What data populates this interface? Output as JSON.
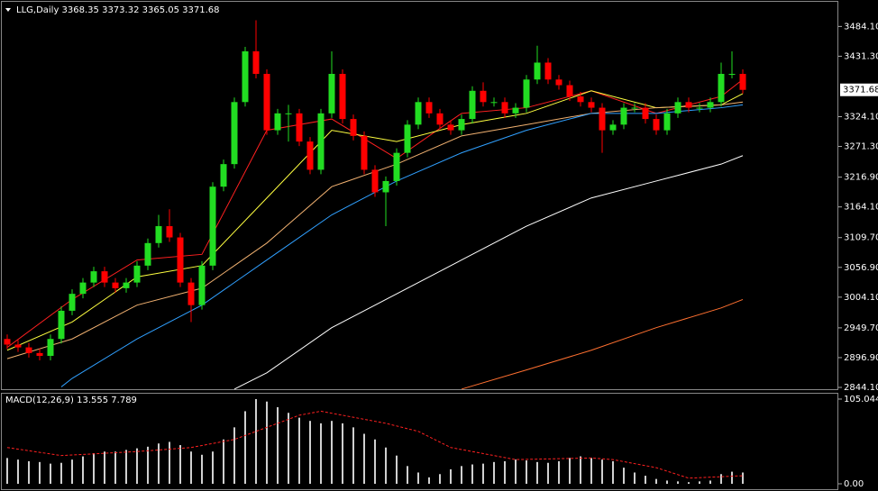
{
  "chart_data": {
    "type": "candlestick",
    "title": "LLG,Daily  3368.35 3373.32 3365.05 3371.68",
    "price_label": "3371.68",
    "price_label_value": 3371.68,
    "up_color": "#22dd22",
    "down_color": "#ff0000",
    "ylim": [
      2840.9,
      3527.8
    ],
    "yticks": [
      {
        "value": 3484.1,
        "label": "3484.10"
      },
      {
        "value": 3431.3,
        "label": "3431.30"
      },
      {
        "value": 3324.1,
        "label": "3324.10"
      },
      {
        "value": 3271.3,
        "label": "3271.30"
      },
      {
        "value": 3216.9,
        "label": "3216.90"
      },
      {
        "value": 3164.1,
        "label": "3164.10"
      },
      {
        "value": 3109.7,
        "label": "3109.70"
      },
      {
        "value": 3056.9,
        "label": "3056.90"
      },
      {
        "value": 3004.1,
        "label": "3004.10"
      },
      {
        "value": 2949.7,
        "label": "2949.70"
      },
      {
        "value": 2896.9,
        "label": "2896.90"
      },
      {
        "value": 2844.1,
        "label": "2844.10"
      }
    ],
    "open": [
      2930,
      2920,
      2915,
      2905,
      2900,
      2930,
      2980,
      3010,
      3030,
      3050,
      3030,
      3020,
      3030,
      3060,
      3100,
      3130,
      3110,
      3030,
      2990,
      3060,
      3200,
      3240,
      3350,
      3440,
      3400,
      3300,
      3330,
      3330,
      3280,
      3230,
      3330,
      3400,
      3320,
      3290,
      3230,
      3190,
      3210,
      3260,
      3310,
      3350,
      3330,
      3310,
      3300,
      3320,
      3370,
      3350,
      3350,
      3330,
      3340,
      3390,
      3420,
      3390,
      3380,
      3360,
      3350,
      3340,
      3300,
      3310,
      3340,
      3340,
      3320,
      3300,
      3330,
      3350,
      3340,
      3340,
      3350,
      3400,
      3400
    ],
    "high": [
      2938,
      2928,
      2923,
      2913,
      2938,
      2988,
      3018,
      3038,
      3058,
      3058,
      3038,
      3038,
      3068,
      3108,
      3150,
      3160,
      3118,
      3038,
      3068,
      3208,
      3248,
      3358,
      3448,
      3495,
      3408,
      3338,
      3345,
      3338,
      3288,
      3338,
      3440,
      3408,
      3328,
      3298,
      3238,
      3218,
      3268,
      3318,
      3358,
      3358,
      3338,
      3318,
      3328,
      3378,
      3385,
      3358,
      3358,
      3348,
      3398,
      3450,
      3428,
      3398,
      3388,
      3368,
      3358,
      3348,
      3318,
      3348,
      3348,
      3348,
      3328,
      3338,
      3358,
      3358,
      3348,
      3358,
      3420,
      3440,
      3408
    ],
    "low": [
      2912,
      2907,
      2897,
      2892,
      2892,
      2922,
      2972,
      3002,
      3022,
      3022,
      3012,
      3012,
      3022,
      3052,
      3092,
      3102,
      3022,
      2960,
      2982,
      3052,
      3192,
      3232,
      3342,
      3392,
      3292,
      3292,
      3280,
      3272,
      3222,
      3222,
      3322,
      3312,
      3282,
      3222,
      3182,
      3130,
      3202,
      3252,
      3302,
      3322,
      3302,
      3292,
      3292,
      3312,
      3342,
      3342,
      3322,
      3322,
      3332,
      3382,
      3382,
      3372,
      3352,
      3342,
      3332,
      3260,
      3292,
      3302,
      3332,
      3312,
      3292,
      3292,
      3322,
      3332,
      3332,
      3332,
      3342,
      3392,
      3365.05
    ],
    "close": [
      2920,
      2915,
      2905,
      2900,
      2930,
      2980,
      3010,
      3030,
      3050,
      3030,
      3020,
      3030,
      3060,
      3100,
      3130,
      3110,
      3030,
      2990,
      3060,
      3200,
      3240,
      3350,
      3440,
      3400,
      3300,
      3330,
      3330,
      3280,
      3230,
      3330,
      3400,
      3320,
      3290,
      3230,
      3190,
      3210,
      3260,
      3310,
      3350,
      3330,
      3310,
      3300,
      3320,
      3370,
      3350,
      3350,
      3330,
      3340,
      3390,
      3420,
      3390,
      3380,
      3360,
      3350,
      3340,
      3300,
      3310,
      3340,
      3340,
      3320,
      3300,
      3330,
      3350,
      3340,
      3340,
      3350,
      3400,
      3400,
      3371.68
    ],
    "lines": [
      {
        "color": "#ff2020",
        "x": [
          0,
          6,
          12,
          18,
          24,
          30,
          36,
          42,
          48,
          54,
          60,
          66,
          68
        ],
        "values": [
          2915,
          3000,
          3070,
          3080,
          3300,
          3320,
          3250,
          3330,
          3340,
          3370,
          3330,
          3360,
          3390
        ]
      },
      {
        "color": "#ffff40",
        "x": [
          0,
          6,
          12,
          18,
          24,
          30,
          36,
          42,
          48,
          54,
          60,
          66,
          68
        ],
        "values": [
          2910,
          2960,
          3040,
          3060,
          3180,
          3300,
          3280,
          3310,
          3330,
          3370,
          3340,
          3345,
          3365
        ]
      },
      {
        "color": "#f0b070",
        "x": [
          0,
          6,
          12,
          18,
          24,
          30,
          36,
          42,
          48,
          54,
          60,
          66,
          68
        ],
        "values": [
          2895,
          2930,
          2990,
          3020,
          3100,
          3200,
          3240,
          3290,
          3310,
          3330,
          3340,
          3345,
          3350
        ]
      },
      {
        "color": "#30a0ff",
        "x": [
          5,
          6,
          12,
          18,
          24,
          30,
          36,
          42,
          48,
          54,
          60,
          66,
          68
        ],
        "values": [
          2845,
          2860,
          2930,
          2990,
          3070,
          3150,
          3210,
          3260,
          3300,
          3330,
          3330,
          3340,
          3345
        ]
      },
      {
        "color": "#ffffff",
        "x": [
          21,
          24,
          30,
          36,
          42,
          48,
          54,
          60,
          66,
          68
        ],
        "values": [
          2841,
          2870,
          2950,
          3010,
          3070,
          3130,
          3180,
          3210,
          3240,
          3255
        ]
      },
      {
        "color": "#ff7030",
        "x": [
          42,
          48,
          54,
          60,
          66,
          68
        ],
        "values": [
          2841,
          2875,
          2910,
          2950,
          2985,
          3000
        ]
      }
    ],
    "macd": {
      "title": "MACD(12,26,9) 13.555 7.789",
      "ylim": [
        -6.7,
        110.6
      ],
      "yticks": [
        {
          "value": 105.044,
          "label": "105.044"
        },
        {
          "value": 0,
          "label": "0.00"
        }
      ],
      "color": "#d0d0d0",
      "signal_color": "#ff2020",
      "values": [
        32,
        30,
        28,
        27,
        25,
        26,
        30,
        34,
        38,
        40,
        40,
        42,
        44,
        46,
        50,
        52,
        48,
        40,
        36,
        40,
        55,
        70,
        90,
        105,
        102,
        95,
        88,
        82,
        78,
        75,
        78,
        75,
        70,
        62,
        55,
        45,
        35,
        22,
        14,
        8,
        12,
        18,
        22,
        24,
        25,
        27,
        28,
        30,
        29,
        27,
        26,
        28,
        32,
        34,
        32,
        30,
        28,
        20,
        14,
        10,
        6,
        4,
        3,
        2,
        3,
        4,
        12,
        15,
        14
      ],
      "signal_x": [
        0,
        5,
        12,
        17,
        21,
        27,
        29,
        35,
        38,
        41,
        47,
        54,
        56,
        60,
        63,
        68
      ],
      "signal": [
        45,
        35,
        40,
        45,
        55,
        85,
        90,
        75,
        65,
        45,
        30,
        32,
        30,
        20,
        7,
        10
      ]
    }
  }
}
